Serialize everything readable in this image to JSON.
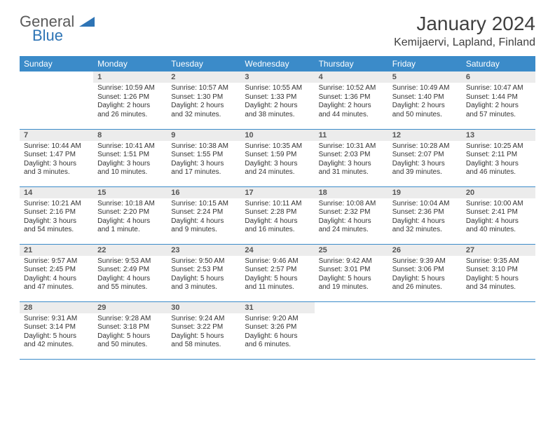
{
  "logo": {
    "text1": "General",
    "text2": "Blue"
  },
  "title": "January 2024",
  "location": "Kemijaervi, Lapland, Finland",
  "colors": {
    "header_bg": "#3b8bc9",
    "header_fg": "#ffffff",
    "daynum_bg": "#ececec",
    "rule": "#3b8bc9"
  },
  "weekdays": [
    "Sunday",
    "Monday",
    "Tuesday",
    "Wednesday",
    "Thursday",
    "Friday",
    "Saturday"
  ],
  "weeks": [
    [
      {
        "n": "",
        "sr": "",
        "ss": "",
        "dl": ""
      },
      {
        "n": "1",
        "sr": "Sunrise: 10:59 AM",
        "ss": "Sunset: 1:26 PM",
        "dl": "Daylight: 2 hours and 26 minutes."
      },
      {
        "n": "2",
        "sr": "Sunrise: 10:57 AM",
        "ss": "Sunset: 1:30 PM",
        "dl": "Daylight: 2 hours and 32 minutes."
      },
      {
        "n": "3",
        "sr": "Sunrise: 10:55 AM",
        "ss": "Sunset: 1:33 PM",
        "dl": "Daylight: 2 hours and 38 minutes."
      },
      {
        "n": "4",
        "sr": "Sunrise: 10:52 AM",
        "ss": "Sunset: 1:36 PM",
        "dl": "Daylight: 2 hours and 44 minutes."
      },
      {
        "n": "5",
        "sr": "Sunrise: 10:49 AM",
        "ss": "Sunset: 1:40 PM",
        "dl": "Daylight: 2 hours and 50 minutes."
      },
      {
        "n": "6",
        "sr": "Sunrise: 10:47 AM",
        "ss": "Sunset: 1:44 PM",
        "dl": "Daylight: 2 hours and 57 minutes."
      }
    ],
    [
      {
        "n": "7",
        "sr": "Sunrise: 10:44 AM",
        "ss": "Sunset: 1:47 PM",
        "dl": "Daylight: 3 hours and 3 minutes."
      },
      {
        "n": "8",
        "sr": "Sunrise: 10:41 AM",
        "ss": "Sunset: 1:51 PM",
        "dl": "Daylight: 3 hours and 10 minutes."
      },
      {
        "n": "9",
        "sr": "Sunrise: 10:38 AM",
        "ss": "Sunset: 1:55 PM",
        "dl": "Daylight: 3 hours and 17 minutes."
      },
      {
        "n": "10",
        "sr": "Sunrise: 10:35 AM",
        "ss": "Sunset: 1:59 PM",
        "dl": "Daylight: 3 hours and 24 minutes."
      },
      {
        "n": "11",
        "sr": "Sunrise: 10:31 AM",
        "ss": "Sunset: 2:03 PM",
        "dl": "Daylight: 3 hours and 31 minutes."
      },
      {
        "n": "12",
        "sr": "Sunrise: 10:28 AM",
        "ss": "Sunset: 2:07 PM",
        "dl": "Daylight: 3 hours and 39 minutes."
      },
      {
        "n": "13",
        "sr": "Sunrise: 10:25 AM",
        "ss": "Sunset: 2:11 PM",
        "dl": "Daylight: 3 hours and 46 minutes."
      }
    ],
    [
      {
        "n": "14",
        "sr": "Sunrise: 10:21 AM",
        "ss": "Sunset: 2:16 PM",
        "dl": "Daylight: 3 hours and 54 minutes."
      },
      {
        "n": "15",
        "sr": "Sunrise: 10:18 AM",
        "ss": "Sunset: 2:20 PM",
        "dl": "Daylight: 4 hours and 1 minute."
      },
      {
        "n": "16",
        "sr": "Sunrise: 10:15 AM",
        "ss": "Sunset: 2:24 PM",
        "dl": "Daylight: 4 hours and 9 minutes."
      },
      {
        "n": "17",
        "sr": "Sunrise: 10:11 AM",
        "ss": "Sunset: 2:28 PM",
        "dl": "Daylight: 4 hours and 16 minutes."
      },
      {
        "n": "18",
        "sr": "Sunrise: 10:08 AM",
        "ss": "Sunset: 2:32 PM",
        "dl": "Daylight: 4 hours and 24 minutes."
      },
      {
        "n": "19",
        "sr": "Sunrise: 10:04 AM",
        "ss": "Sunset: 2:36 PM",
        "dl": "Daylight: 4 hours and 32 minutes."
      },
      {
        "n": "20",
        "sr": "Sunrise: 10:00 AM",
        "ss": "Sunset: 2:41 PM",
        "dl": "Daylight: 4 hours and 40 minutes."
      }
    ],
    [
      {
        "n": "21",
        "sr": "Sunrise: 9:57 AM",
        "ss": "Sunset: 2:45 PM",
        "dl": "Daylight: 4 hours and 47 minutes."
      },
      {
        "n": "22",
        "sr": "Sunrise: 9:53 AM",
        "ss": "Sunset: 2:49 PM",
        "dl": "Daylight: 4 hours and 55 minutes."
      },
      {
        "n": "23",
        "sr": "Sunrise: 9:50 AM",
        "ss": "Sunset: 2:53 PM",
        "dl": "Daylight: 5 hours and 3 minutes."
      },
      {
        "n": "24",
        "sr": "Sunrise: 9:46 AM",
        "ss": "Sunset: 2:57 PM",
        "dl": "Daylight: 5 hours and 11 minutes."
      },
      {
        "n": "25",
        "sr": "Sunrise: 9:42 AM",
        "ss": "Sunset: 3:01 PM",
        "dl": "Daylight: 5 hours and 19 minutes."
      },
      {
        "n": "26",
        "sr": "Sunrise: 9:39 AM",
        "ss": "Sunset: 3:06 PM",
        "dl": "Daylight: 5 hours and 26 minutes."
      },
      {
        "n": "27",
        "sr": "Sunrise: 9:35 AM",
        "ss": "Sunset: 3:10 PM",
        "dl": "Daylight: 5 hours and 34 minutes."
      }
    ],
    [
      {
        "n": "28",
        "sr": "Sunrise: 9:31 AM",
        "ss": "Sunset: 3:14 PM",
        "dl": "Daylight: 5 hours and 42 minutes."
      },
      {
        "n": "29",
        "sr": "Sunrise: 9:28 AM",
        "ss": "Sunset: 3:18 PM",
        "dl": "Daylight: 5 hours and 50 minutes."
      },
      {
        "n": "30",
        "sr": "Sunrise: 9:24 AM",
        "ss": "Sunset: 3:22 PM",
        "dl": "Daylight: 5 hours and 58 minutes."
      },
      {
        "n": "31",
        "sr": "Sunrise: 9:20 AM",
        "ss": "Sunset: 3:26 PM",
        "dl": "Daylight: 6 hours and 6 minutes."
      },
      {
        "n": "",
        "sr": "",
        "ss": "",
        "dl": ""
      },
      {
        "n": "",
        "sr": "",
        "ss": "",
        "dl": ""
      },
      {
        "n": "",
        "sr": "",
        "ss": "",
        "dl": ""
      }
    ]
  ]
}
